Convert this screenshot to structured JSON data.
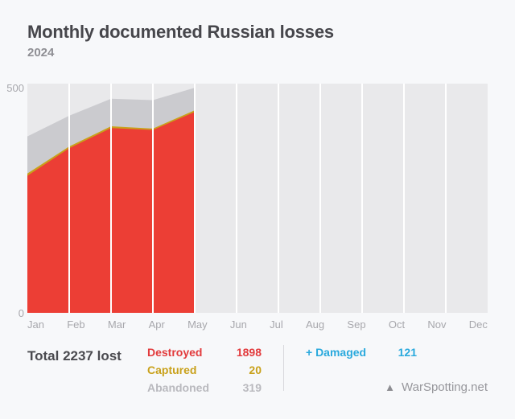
{
  "header": {
    "title": "Monthly documented Russian losses",
    "subtitle": "2024"
  },
  "chart_data": {
    "type": "area",
    "stacked": true,
    "title": "Monthly documented Russian losses",
    "subtitle": "2024",
    "x_categories": [
      "Jan",
      "Feb",
      "Mar",
      "Apr",
      "May",
      "Jun",
      "Jul",
      "Aug",
      "Sep",
      "Oct",
      "Nov",
      "Dec"
    ],
    "plotted_months": [
      "Jan",
      "Feb",
      "Mar",
      "Apr",
      "May"
    ],
    "ylim": [
      0,
      500
    ],
    "y_tick_labels": [
      "0",
      "500"
    ],
    "grid": "vertical-white-lines",
    "legend_position": "bottom",
    "series": [
      {
        "name": "Destroyed",
        "color": "#ec3e35",
        "values": [
          299,
          359,
          403,
          399,
          438
        ],
        "total": 1898
      },
      {
        "name": "Captured",
        "color": "#c9a11b",
        "values": [
          5,
          4,
          4,
          3,
          4
        ],
        "total": 20
      },
      {
        "name": "Abandoned",
        "color": "#cbcbcf",
        "values": [
          81,
          67,
          60,
          62,
          49
        ],
        "total": 319
      }
    ],
    "monthly_totals_estimated": [
      385,
      430,
      467,
      464,
      491
    ],
    "total_lost": 2237
  },
  "axis": {
    "y_top_label": "500",
    "y_bottom_label": "0"
  },
  "legend": {
    "total_label": "Total 2237 lost",
    "rows": [
      {
        "label": "Destroyed",
        "value": "1898",
        "color": "#e23a3c"
      },
      {
        "label": "Captured",
        "value": "20",
        "color": "#c9a11b"
      },
      {
        "label": "Abandoned",
        "value": "319",
        "color": "#b9b9be"
      }
    ],
    "damaged": {
      "label": "+ Damaged",
      "value": "121",
      "color": "#29a9dd"
    }
  },
  "brand": {
    "name": "WarSpotting.net",
    "icon": "triangle"
  },
  "colors": {
    "page_bg": "#f7f8fa",
    "plot_bg": "#e9e9eb",
    "gridline": "#ffffff",
    "destroyed_fill": "#ec3e35",
    "captured_fill": "#c9a11b",
    "abandoned_fill": "#cbcbcf"
  }
}
